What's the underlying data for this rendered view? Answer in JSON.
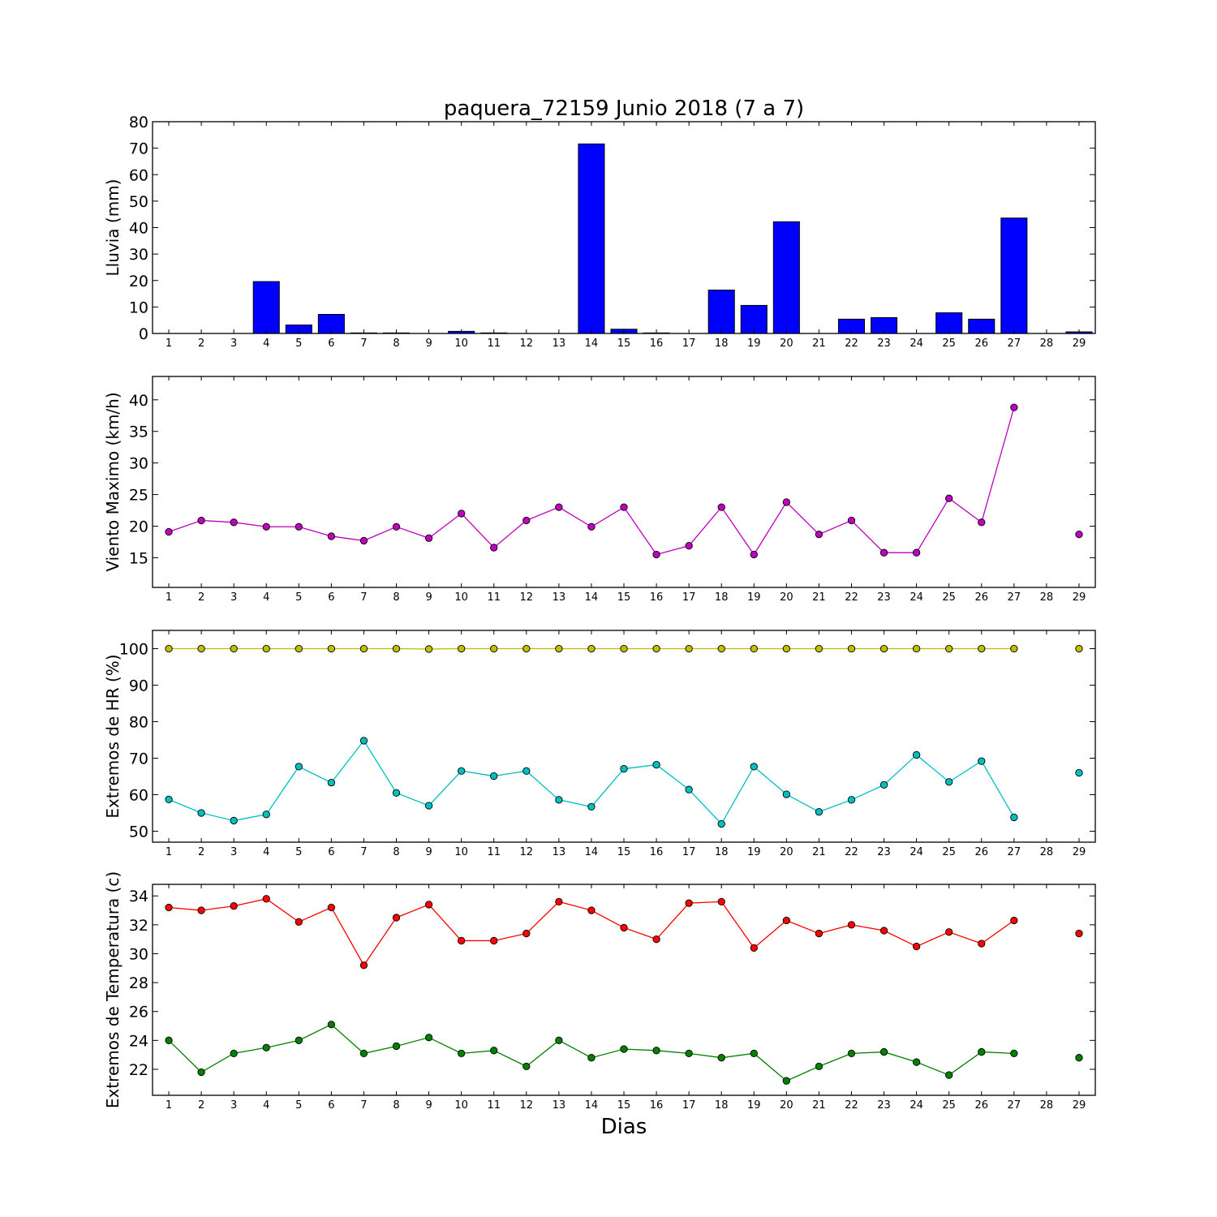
{
  "title": "paquera_72159 Junio 2018  (7 a 7)",
  "xlabel": "Dias",
  "chart_data": [
    {
      "type": "bar",
      "ylabel": "Lluvia (mm)",
      "ylim": [
        0,
        80
      ],
      "yticks": [
        0,
        10,
        20,
        30,
        40,
        50,
        60,
        70,
        80
      ],
      "x": [
        1,
        2,
        3,
        4,
        5,
        6,
        7,
        8,
        9,
        10,
        11,
        12,
        13,
        14,
        15,
        16,
        17,
        18,
        19,
        20,
        21,
        22,
        23,
        24,
        25,
        26,
        27,
        28,
        29
      ],
      "series": [
        {
          "color": "#0000ff",
          "values": [
            0,
            0,
            0,
            19.6,
            3.2,
            7.2,
            0.2,
            0.2,
            0,
            0.8,
            0.2,
            0,
            0,
            71.6,
            1.6,
            0.2,
            0,
            16.4,
            10.6,
            42.2,
            0,
            5.4,
            6,
            0,
            7.8,
            5.4,
            43.6,
            0,
            0.6
          ]
        }
      ]
    },
    {
      "type": "line",
      "ylabel": "Viento Maximo (km/h)",
      "ylim": [
        10.3,
        43.7
      ],
      "yticks": [
        15,
        20,
        25,
        30,
        35,
        40
      ],
      "x": [
        1,
        2,
        3,
        4,
        5,
        6,
        7,
        8,
        9,
        10,
        11,
        12,
        13,
        14,
        15,
        16,
        17,
        18,
        19,
        20,
        21,
        22,
        23,
        24,
        25,
        26,
        27,
        28,
        29
      ],
      "series": [
        {
          "color": "#bf00bf",
          "values": [
            19.1,
            20.9,
            20.6,
            19.9,
            19.9,
            18.4,
            17.7,
            19.9,
            18.1,
            22,
            16.6,
            20.9,
            23,
            19.9,
            23,
            15.5,
            16.9,
            23,
            15.5,
            23.8,
            18.7,
            20.9,
            15.8,
            15.8,
            24.4,
            20.6,
            38.8,
            null,
            18.7
          ]
        }
      ]
    },
    {
      "type": "line",
      "ylabel": "Extremos de HR (%)",
      "ylim": [
        47,
        105
      ],
      "yticks": [
        50,
        60,
        70,
        80,
        90,
        100
      ],
      "x": [
        1,
        2,
        3,
        4,
        5,
        6,
        7,
        8,
        9,
        10,
        11,
        12,
        13,
        14,
        15,
        16,
        17,
        18,
        19,
        20,
        21,
        22,
        23,
        24,
        25,
        26,
        27,
        28,
        29
      ],
      "series": [
        {
          "color": "#bfbf00",
          "values": [
            100,
            100,
            100,
            100,
            100,
            100,
            100,
            100,
            99.9,
            100,
            100,
            100,
            100,
            100,
            100,
            100,
            100,
            100,
            100,
            100,
            100,
            100,
            100,
            100,
            100,
            100,
            100,
            null,
            100
          ]
        },
        {
          "color": "#00bfbf",
          "values": [
            58.7,
            55,
            52.9,
            54.6,
            67.7,
            63.3,
            74.8,
            60.5,
            57,
            66.5,
            65.1,
            66.5,
            58.6,
            56.7,
            67.1,
            68.2,
            61.4,
            52,
            67.7,
            60.1,
            55.3,
            58.6,
            62.7,
            70.9,
            63.5,
            69.2,
            53.8,
            null,
            66
          ]
        }
      ]
    },
    {
      "type": "line",
      "ylabel": "Extremos de Temperatura (c)",
      "ylim": [
        20.2,
        34.8
      ],
      "yticks": [
        22,
        24,
        26,
        28,
        30,
        32,
        34
      ],
      "x": [
        1,
        2,
        3,
        4,
        5,
        6,
        7,
        8,
        9,
        10,
        11,
        12,
        13,
        14,
        15,
        16,
        17,
        18,
        19,
        20,
        21,
        22,
        23,
        24,
        25,
        26,
        27,
        28,
        29
      ],
      "series": [
        {
          "color": "#ff0000",
          "values": [
            33.2,
            33,
            33.3,
            33.8,
            32.2,
            33.2,
            29.2,
            32.5,
            33.4,
            30.9,
            30.9,
            31.4,
            33.6,
            33,
            31.8,
            31,
            33.5,
            33.6,
            30.4,
            32.3,
            31.4,
            32,
            31.6,
            30.5,
            31.5,
            30.7,
            32.3,
            null,
            31.4
          ]
        },
        {
          "color": "#008000",
          "values": [
            24,
            21.8,
            23.1,
            23.5,
            24,
            25.1,
            23.1,
            23.6,
            24.2,
            23.1,
            23.3,
            22.2,
            24,
            22.8,
            23.4,
            23.3,
            23.1,
            22.8,
            23.1,
            21.2,
            22.2,
            23.1,
            23.2,
            22.5,
            21.6,
            23.2,
            23.1,
            null,
            22.8
          ]
        }
      ]
    }
  ]
}
